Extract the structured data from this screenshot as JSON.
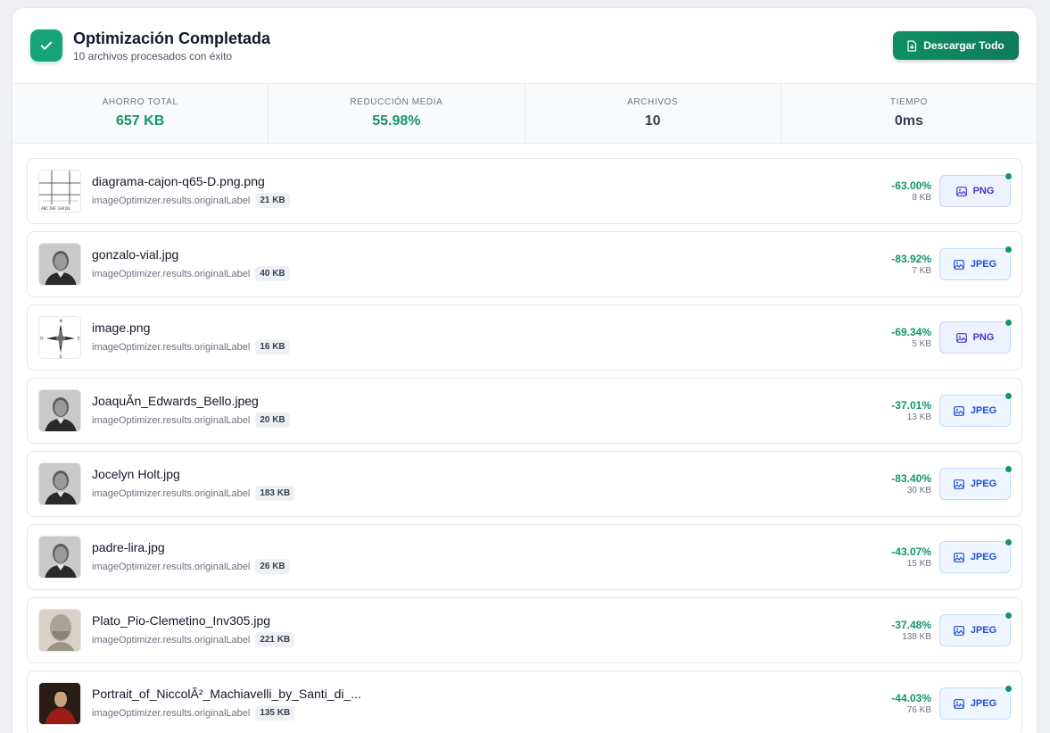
{
  "header": {
    "title": "Optimización Completada",
    "subtitle": "10 archivos procesados con éxito",
    "download_label": "Descargar Todo"
  },
  "stats": [
    {
      "label": "AHORRO TOTAL",
      "value": "657 KB",
      "color": "#13946b"
    },
    {
      "label": "REDUCCIÓN MEDIA",
      "value": "55.98%",
      "color": "#13946b"
    },
    {
      "label": "ARCHIVOS",
      "value": "10",
      "color": "#374151"
    },
    {
      "label": "TIEMPO",
      "value": "0ms",
      "color": "#374151"
    }
  ],
  "files": [
    {
      "name": "diagrama-cajon-q65-D.png.png",
      "original_label": "imageOptimizer.results.originalLabel",
      "original_size": "21 KB",
      "reduction": "-63.00%",
      "new_size": "8 KB",
      "format": "PNG",
      "thumb": "diagram"
    },
    {
      "name": "gonzalo-vial.jpg",
      "original_label": "imageOptimizer.results.originalLabel",
      "original_size": "40 KB",
      "reduction": "-83.92%",
      "new_size": "7 KB",
      "format": "JPEG",
      "thumb": "portrait"
    },
    {
      "name": "image.png",
      "original_label": "imageOptimizer.results.originalLabel",
      "original_size": "16 KB",
      "reduction": "-69.34%",
      "new_size": "5 KB",
      "format": "PNG",
      "thumb": "compass"
    },
    {
      "name": "JoaquÃn_Edwards_Bello.jpeg",
      "original_label": "imageOptimizer.results.originalLabel",
      "original_size": "20 KB",
      "reduction": "-37.01%",
      "new_size": "13 KB",
      "format": "JPEG",
      "thumb": "portrait"
    },
    {
      "name": "Jocelyn Holt.jpg",
      "original_label": "imageOptimizer.results.originalLabel",
      "original_size": "183 KB",
      "reduction": "-83.40%",
      "new_size": "30 KB",
      "format": "JPEG",
      "thumb": "portrait"
    },
    {
      "name": "padre-lira.jpg",
      "original_label": "imageOptimizer.results.originalLabel",
      "original_size": "26 KB",
      "reduction": "-43.07%",
      "new_size": "15 KB",
      "format": "JPEG",
      "thumb": "portrait"
    },
    {
      "name": "Plato_Pio-Clemetino_Inv305.jpg",
      "original_label": "imageOptimizer.results.originalLabel",
      "original_size": "221 KB",
      "reduction": "-37.48%",
      "new_size": "138 KB",
      "format": "JPEG",
      "thumb": "bust"
    },
    {
      "name": "Portrait_of_NiccolÃ²_Machiavelli_by_Santi_di_...",
      "original_label": "imageOptimizer.results.originalLabel",
      "original_size": "135 KB",
      "reduction": "-44.03%",
      "new_size": "76 KB",
      "format": "JPEG",
      "thumb": "painting"
    }
  ]
}
